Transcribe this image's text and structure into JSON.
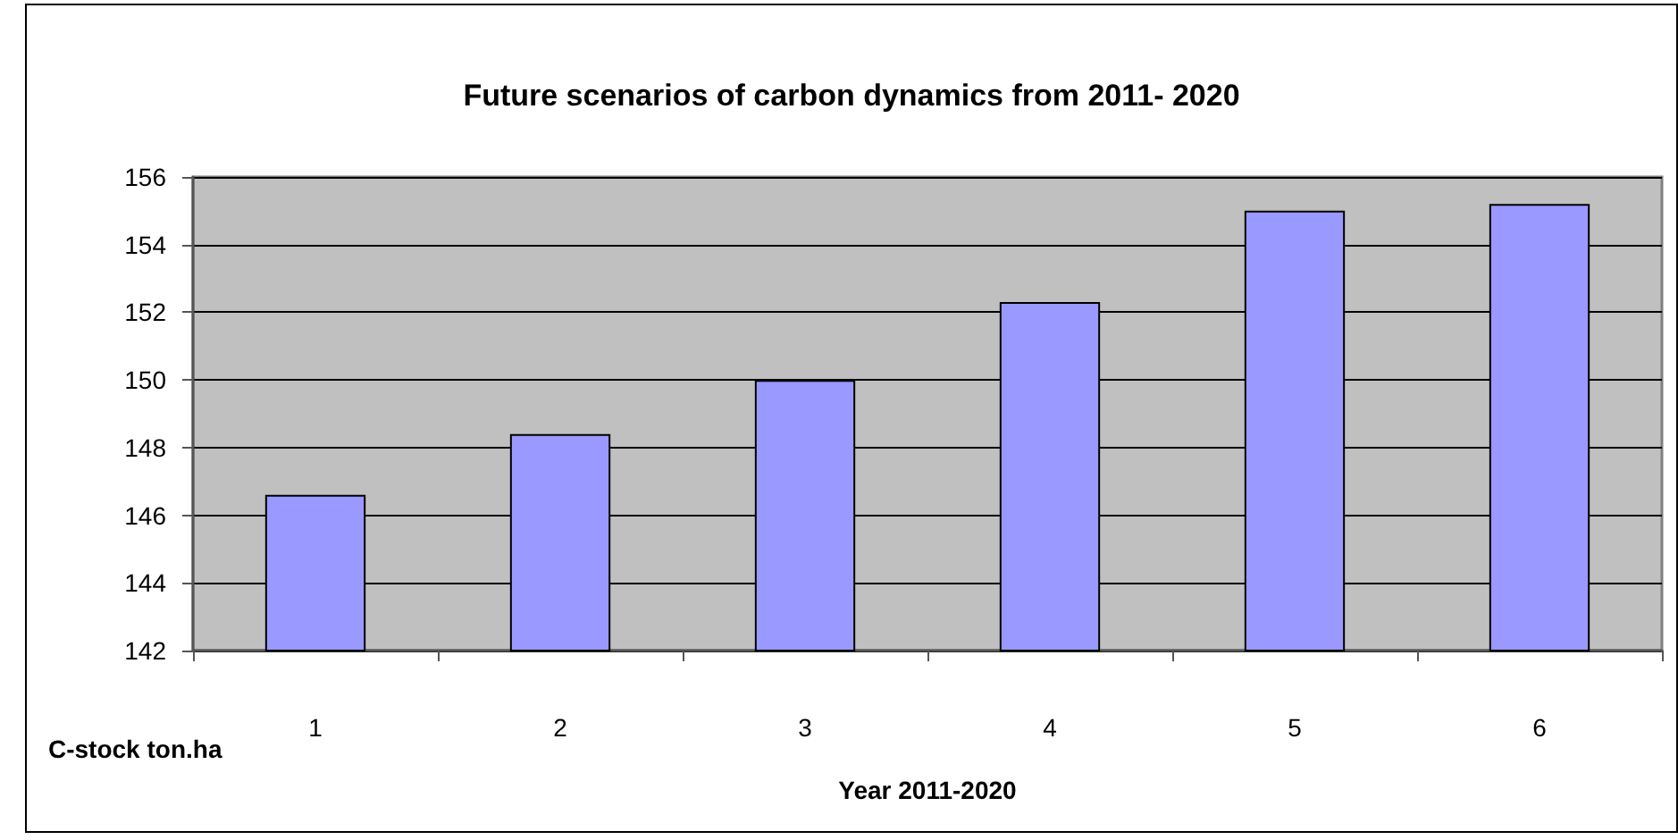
{
  "chart_data": {
    "type": "bar",
    "title": "Future scenarios of carbon dynamics from 2011- 2020",
    "xlabel": "Year 2011-2020",
    "ylabel": "C-stock ton.ha",
    "categories": [
      "1",
      "2",
      "3",
      "4",
      "5",
      "6"
    ],
    "values": [
      146.6,
      148.4,
      150.0,
      152.3,
      155.0,
      155.2
    ],
    "color": "#9999ff",
    "ylim": [
      142,
      156
    ],
    "yticks": [
      142,
      144,
      146,
      148,
      150,
      152,
      154,
      156
    ],
    "grid": "y"
  }
}
